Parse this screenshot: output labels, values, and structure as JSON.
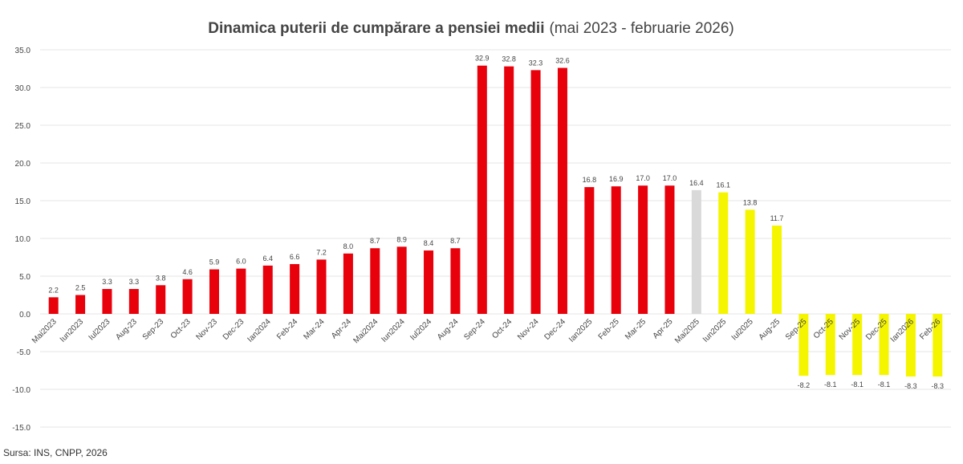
{
  "source_text": "Sursa: INS, CNPP, 2026",
  "chart_data": {
    "type": "bar",
    "title": "Dinamica puterii de cumpărare a pensiei medii",
    "subtitle": "(mai 2023 - februarie 2026)",
    "xlabel": "",
    "ylabel": "",
    "ylim": [
      -15,
      35
    ],
    "yticks": [
      "-15.0",
      "-10.0",
      "-5.0",
      "0.0",
      "5.0",
      "10.0",
      "15.0",
      "20.0",
      "25.0",
      "30.0",
      "35.0"
    ],
    "grid": true,
    "legend": "none",
    "categories": [
      "Mai2023",
      "Iun2023",
      "Iul2023",
      "Aug-23",
      "Sep-23",
      "Oct-23",
      "Nov-23",
      "Dec-23",
      "Ian2024",
      "Feb-24",
      "Mar-24",
      "Apr-24",
      "Mai2024",
      "Iun2024",
      "Iul2024",
      "Aug-24",
      "Sep-24",
      "Oct-24",
      "Nov-24",
      "Dec-24",
      "Ian2025",
      "Feb-25",
      "Mar-25",
      "Apr-25",
      "Mai2025",
      "Iun2025",
      "Iul2025",
      "Aug-25",
      "Sep-25",
      "Oct-25",
      "Nov-25",
      "Dec-25",
      "Ian2026",
      "Feb-26"
    ],
    "values": [
      2.2,
      2.5,
      3.3,
      3.3,
      3.8,
      4.6,
      5.9,
      6.0,
      6.4,
      6.6,
      7.2,
      8.0,
      8.7,
      8.9,
      8.4,
      8.7,
      32.9,
      32.8,
      32.3,
      32.6,
      16.8,
      16.9,
      17.0,
      17.0,
      16.4,
      16.1,
      13.8,
      11.7,
      -8.2,
      -8.1,
      -8.1,
      -8.1,
      -8.3,
      -8.3
    ],
    "data_labels": [
      "2.2",
      "2.5",
      "3.3",
      "3.3",
      "3.8",
      "4.6",
      "5.9",
      "6.0",
      "6.4",
      "6.6",
      "7.2",
      "8.0",
      "8.7",
      "8.9",
      "8.4",
      "8.7",
      "32.9",
      "32.8",
      "32.3",
      "32.6",
      "16.8",
      "16.9",
      "17.0",
      "17.0",
      "16.4",
      "16.1",
      "13.8",
      "11.7",
      "-8.2",
      "-8.1",
      "-8.1",
      "-8.1",
      "-8.3",
      "-8.3"
    ],
    "bar_colors": [
      "#e8000b",
      "#e8000b",
      "#e8000b",
      "#e8000b",
      "#e8000b",
      "#e8000b",
      "#e8000b",
      "#e8000b",
      "#e8000b",
      "#e8000b",
      "#e8000b",
      "#e8000b",
      "#e8000b",
      "#e8000b",
      "#e8000b",
      "#e8000b",
      "#e8000b",
      "#e8000b",
      "#e8000b",
      "#e8000b",
      "#e8000b",
      "#e8000b",
      "#e8000b",
      "#e8000b",
      "#d9d9d9",
      "#f5f500",
      "#f5f500",
      "#f5f500",
      "#f5f500",
      "#f5f500",
      "#f5f500",
      "#f5f500",
      "#f5f500",
      "#f5f500"
    ]
  }
}
